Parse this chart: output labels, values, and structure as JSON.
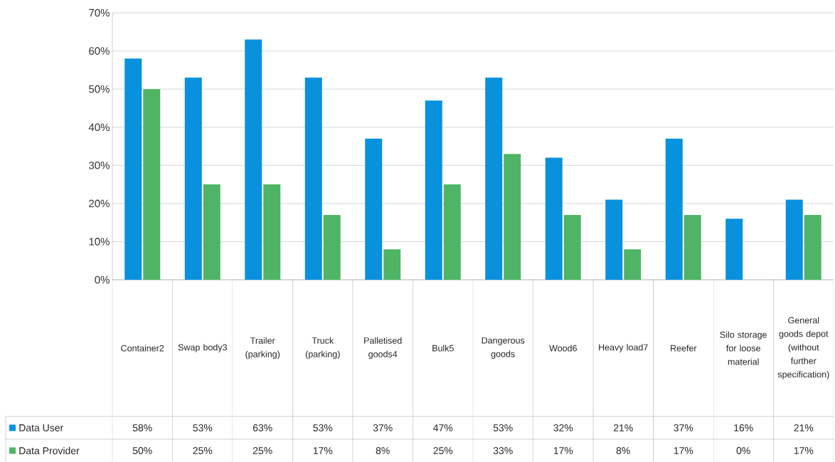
{
  "chart_data": {
    "type": "bar",
    "categories": [
      "Container2",
      "Swap body3",
      "Trailer (parking)",
      "Truck (parking)",
      "Palletised goods4",
      "Bulk5",
      "Dangerous goods",
      "Wood6",
      "Heavy load7",
      "Reefer",
      "Silo storage for loose material",
      "General goods depot (without further specification)"
    ],
    "series": [
      {
        "name": "Data User",
        "color": "#0891dd",
        "values": [
          58,
          53,
          63,
          53,
          37,
          47,
          53,
          32,
          21,
          37,
          16,
          21
        ],
        "value_labels": [
          "58%",
          "53%",
          "63%",
          "53%",
          "37%",
          "47%",
          "53%",
          "32%",
          "21%",
          "37%",
          "16%",
          "21%"
        ]
      },
      {
        "name": "Data Provider",
        "color": "#4fb465",
        "values": [
          50,
          25,
          25,
          17,
          8,
          25,
          33,
          17,
          8,
          17,
          0,
          17
        ],
        "value_labels": [
          "50%",
          "25%",
          "25%",
          "17%",
          "8%",
          "25%",
          "33%",
          "17%",
          "8%",
          "17%",
          "0%",
          "17%"
        ]
      }
    ],
    "ylim": [
      0,
      70
    ],
    "yticks": [
      {
        "value": 0,
        "label": "0%"
      },
      {
        "value": 10,
        "label": "10%"
      },
      {
        "value": 20,
        "label": "20%"
      },
      {
        "value": 30,
        "label": "30%"
      },
      {
        "value": 40,
        "label": "40%"
      },
      {
        "value": 50,
        "label": "50%"
      },
      {
        "value": 60,
        "label": "60%"
      },
      {
        "value": 70,
        "label": "70%"
      }
    ],
    "grid": "y",
    "legend": "bottom"
  }
}
